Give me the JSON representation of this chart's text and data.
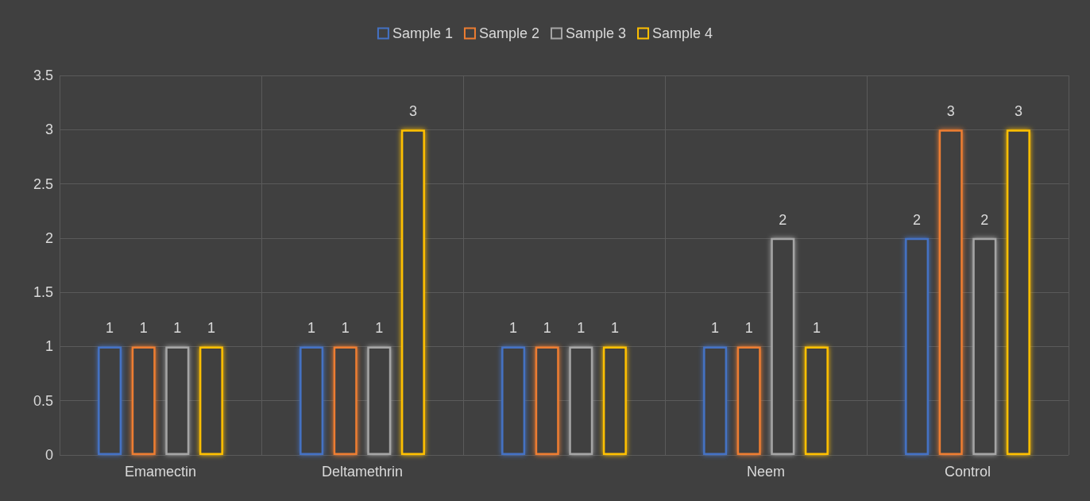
{
  "chart_data": {
    "type": "bar",
    "categories": [
      "Emamectin",
      "Deltamethrin",
      null,
      "Neem",
      "Control"
    ],
    "series": [
      {
        "name": "Sample 1",
        "color": "#4472c4",
        "values": [
          1,
          1,
          1,
          1,
          2
        ]
      },
      {
        "name": "Sample 2",
        "color": "#ed7d31",
        "values": [
          1,
          1,
          1,
          1,
          3
        ]
      },
      {
        "name": "Sample 3",
        "color": "#a5a5a5",
        "values": [
          1,
          1,
          1,
          2,
          2
        ]
      },
      {
        "name": "Sample 4",
        "color": "#ffc000",
        "values": [
          1,
          3,
          1,
          1,
          3
        ]
      }
    ],
    "ylim": [
      0,
      3.5
    ],
    "yticks": [
      0,
      0.5,
      1,
      1.5,
      2,
      2.5,
      3,
      3.5
    ],
    "grid": true,
    "legend": "top",
    "data_labels": true
  }
}
